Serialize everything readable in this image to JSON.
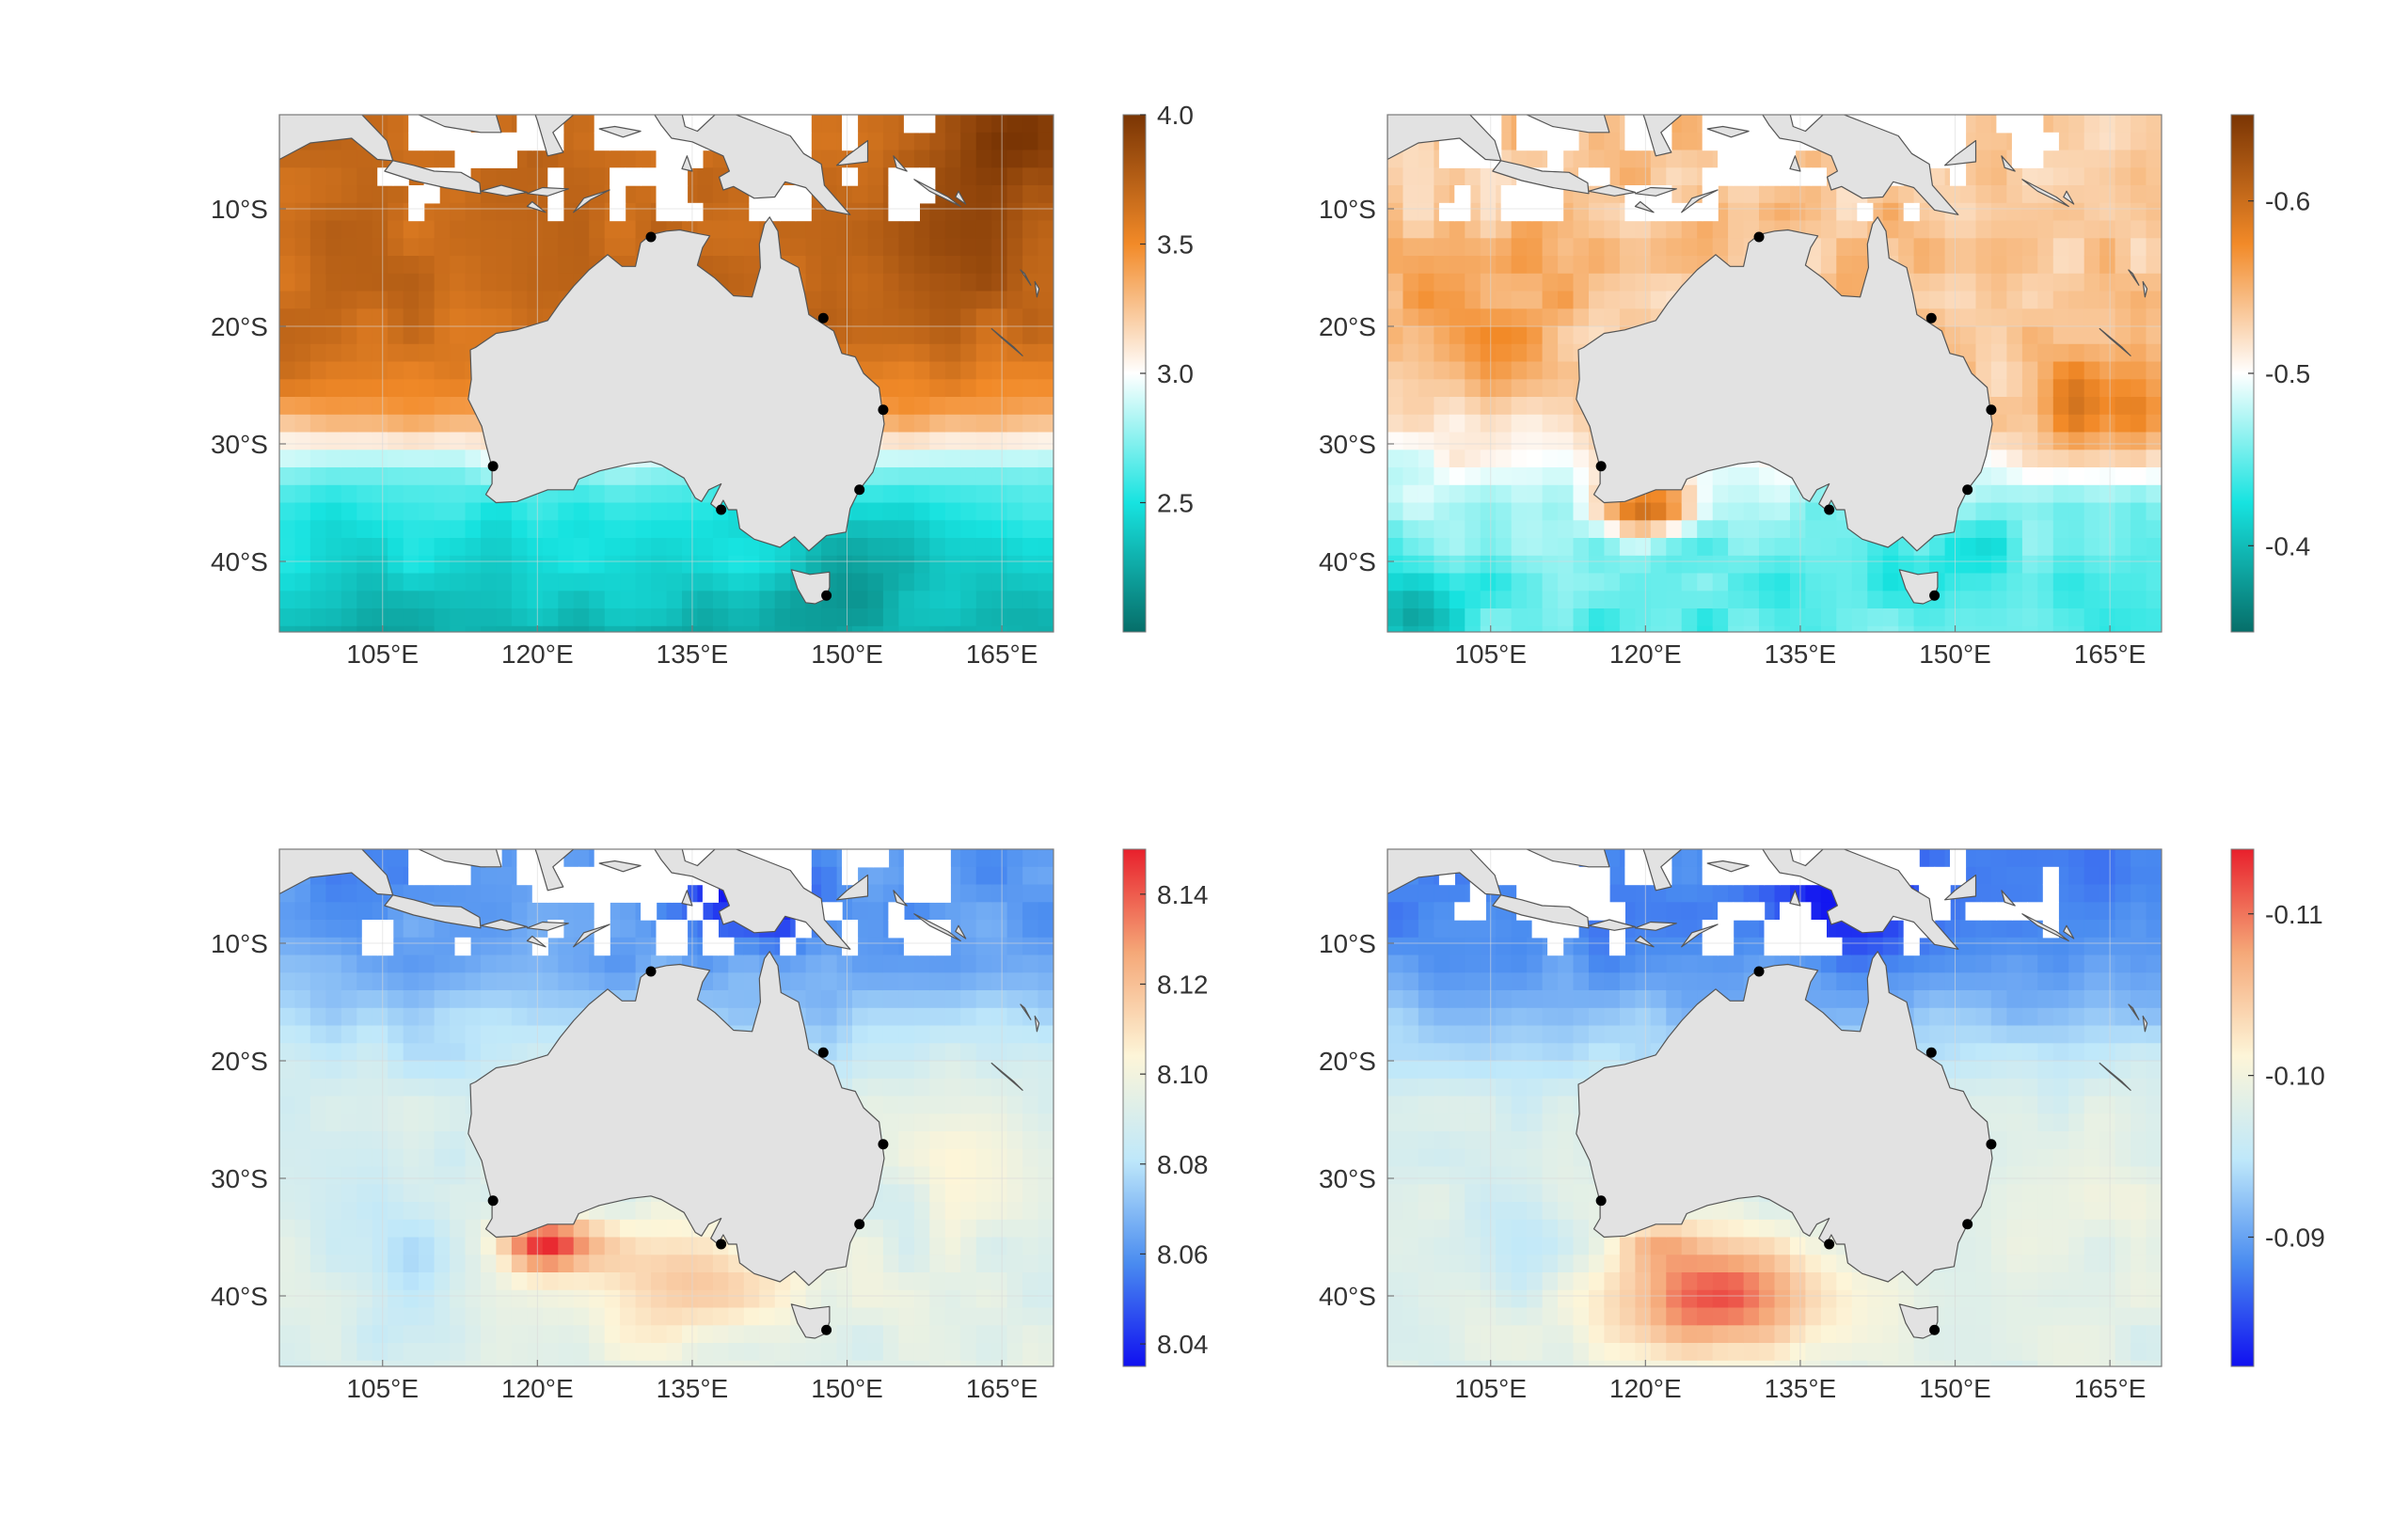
{
  "map_extent": {
    "lon_min": 95,
    "lon_max": 170,
    "lat_min": -46,
    "lat_max": -2
  },
  "lon_ticks": [
    105,
    120,
    135,
    150,
    165
  ],
  "lat_ticks": [
    -10,
    -20,
    -30,
    -40
  ],
  "lon_tick_labels": [
    "105°E",
    "120°E",
    "135°E",
    "150°E",
    "165°E"
  ],
  "lat_tick_labels": [
    "10°S",
    "20°S",
    "30°S",
    "40°S"
  ],
  "colors": {
    "land": "#e2e2e2",
    "coast": "#555555",
    "grid": "#d9d9d9",
    "frame": "#7a7a7a",
    "tick_text": "#333333",
    "station": "#000000"
  },
  "stations": [
    {
      "lon": 131.0,
      "lat": -12.4
    },
    {
      "lon": 147.7,
      "lat": -19.3
    },
    {
      "lon": 153.5,
      "lat": -27.1
    },
    {
      "lon": 151.2,
      "lat": -33.9
    },
    {
      "lon": 137.8,
      "lat": -35.6
    },
    {
      "lon": 115.7,
      "lat": -31.9
    },
    {
      "lon": 148.0,
      "lat": -42.9
    }
  ],
  "panels": [
    {
      "id": "top-left",
      "colormap": "teal-orange",
      "colorbar": {
        "min": 2.0,
        "max": 4.0,
        "ticks": [
          2.5,
          3.0,
          3.5,
          4.0
        ],
        "tick_labels": [
          "2.5",
          "3.0",
          "3.5",
          "4.0"
        ],
        "stops": [
          "#066e69",
          "#17e3e0",
          "#ffffff",
          "#f28a28",
          "#7a3504"
        ]
      },
      "pattern": "warm-north"
    },
    {
      "id": "top-right",
      "colormap": "teal-orange",
      "colorbar": {
        "min": -0.35,
        "max": -0.65,
        "ticks": [
          -0.4,
          -0.5,
          -0.6
        ],
        "tick_labels": [
          "-0.4",
          "-0.5",
          "-0.6"
        ],
        "stops": [
          "#066e69",
          "#17e3e0",
          "#ffffff",
          "#f28a28",
          "#7a3504"
        ]
      },
      "pattern": "warm-mixed"
    },
    {
      "id": "bottom-left",
      "colormap": "blue-red",
      "colorbar": {
        "min": 8.035,
        "max": 8.15,
        "ticks": [
          8.04,
          8.06,
          8.08,
          8.1,
          8.12,
          8.14
        ],
        "tick_labels": [
          "8.04",
          "8.06",
          "8.08",
          "8.10",
          "8.12",
          "8.14"
        ],
        "stops": [
          "#1010f0",
          "#4a8cf0",
          "#bfe8fa",
          "#fdf5d8",
          "#f5a878",
          "#e8202c"
        ]
      },
      "pattern": "south-hot"
    },
    {
      "id": "bottom-right",
      "colormap": "blue-red",
      "colorbar": {
        "min": -0.082,
        "max": -0.114,
        "ticks": [
          -0.09,
          -0.1,
          -0.11
        ],
        "tick_labels": [
          "-0.09",
          "-0.10",
          "-0.11"
        ],
        "stops": [
          "#1010f0",
          "#4a8cf0",
          "#bfe8fa",
          "#fdf5d8",
          "#f5a878",
          "#e8202c"
        ]
      },
      "pattern": "south-hot-strong"
    }
  ]
}
